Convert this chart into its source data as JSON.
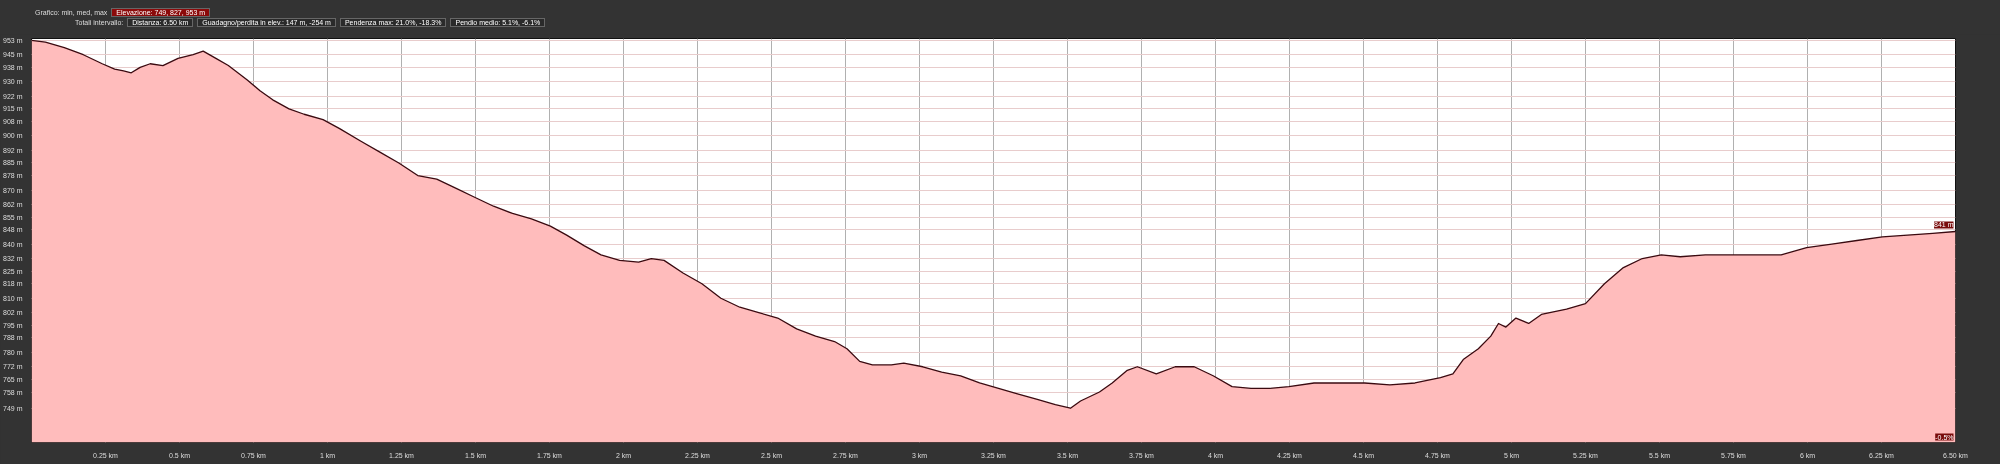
{
  "chart_data": {
    "type": "area",
    "title": "Grafico: min, med, max",
    "subtitle": "Totali intervallo:",
    "annotations": [
      "Elevazione: 749, 827, 953 m",
      "Distanza: 6.50 km",
      "Guadagno/perdita in elev.: 147 m, -254 m",
      "Pendenza max: 21.0%, -18.3%",
      "Pendio medio: 5.1%, -6.1%",
      "841 m",
      "-0.5%"
    ],
    "x": [
      0,
      0.047,
      0.111,
      0.175,
      0.239,
      0.281,
      0.311,
      0.337,
      0.367,
      0.401,
      0.444,
      0.495,
      0.546,
      0.58,
      0.623,
      0.665,
      0.729,
      0.772,
      0.815,
      0.87,
      0.921,
      0.985,
      1.041,
      1.113,
      1.177,
      1.241,
      1.305,
      1.369,
      1.433,
      1.497,
      1.561,
      1.625,
      1.689,
      1.753,
      1.808,
      1.868,
      1.924,
      1.987,
      2.051,
      2.094,
      2.137,
      2.201,
      2.265,
      2.329,
      2.393,
      2.457,
      2.521,
      2.585,
      2.649,
      2.713,
      2.755,
      2.798,
      2.841,
      2.905,
      2.947,
      3.011,
      3.075,
      3.139,
      3.203,
      3.267,
      3.331,
      3.395,
      3.459,
      3.51,
      3.544,
      3.608,
      3.651,
      3.702,
      3.736,
      3.8,
      3.864,
      3.928,
      3.992,
      4.056,
      4.12,
      4.184,
      4.248,
      4.333,
      4.419,
      4.504,
      4.589,
      4.674,
      4.76,
      4.802,
      4.837,
      4.888,
      4.93,
      4.956,
      4.981,
      5.015,
      5.058,
      5.101,
      5.186,
      5.25,
      5.314,
      5.378,
      5.442,
      5.506,
      5.57,
      5.655,
      5.741,
      5.826,
      5.911,
      5.997,
      6.082,
      6.167,
      6.253,
      6.338,
      6.423,
      6.5
    ],
    "series": [
      {
        "color": "#3a0a10",
        "values": [
          953,
          952,
          949,
          945,
          940,
          937,
          936,
          935,
          938,
          940,
          939,
          943,
          945,
          947,
          943,
          939,
          931,
          925,
          920,
          915,
          912,
          909,
          904,
          897,
          891,
          885,
          878,
          876,
          871,
          866,
          861,
          857,
          854,
          850,
          845,
          839,
          834,
          831,
          830,
          832,
          831,
          824,
          818,
          810,
          805,
          802,
          799,
          793,
          789,
          786,
          782,
          775,
          773,
          773,
          774,
          772,
          769,
          767,
          763,
          760,
          757,
          754,
          751,
          749,
          753,
          758,
          763,
          770,
          772,
          768,
          772,
          772,
          767,
          761,
          760,
          760,
          761,
          763,
          763,
          763,
          762,
          763,
          766,
          768,
          776,
          782,
          789,
          796,
          794,
          799,
          796,
          801,
          804,
          807,
          818,
          827,
          832,
          834,
          833,
          834,
          834,
          834,
          834,
          838,
          840,
          842,
          844,
          845,
          846,
          847
        ]
      }
    ],
    "xlim": [
      0,
      6.5
    ],
    "ylim": [
      730,
      954
    ],
    "xticks": [
      {
        "value": 0.25,
        "label": "0.25 km"
      },
      {
        "value": 0.5,
        "label": "0.5 km"
      },
      {
        "value": 0.75,
        "label": "0.75 km"
      },
      {
        "value": 1,
        "label": "1 km"
      },
      {
        "value": 1.25,
        "label": "1.25 km"
      },
      {
        "value": 1.5,
        "label": "1.5 km"
      },
      {
        "value": 1.75,
        "label": "1.75 km"
      },
      {
        "value": 2,
        "label": "2 km"
      },
      {
        "value": 2.25,
        "label": "2.25 km"
      },
      {
        "value": 2.5,
        "label": "2.5 km"
      },
      {
        "value": 2.75,
        "label": "2.75 km"
      },
      {
        "value": 3,
        "label": "3 km"
      },
      {
        "value": 3.25,
        "label": "3.25 km"
      },
      {
        "value": 3.5,
        "label": "3.5 km"
      },
      {
        "value": 3.75,
        "label": "3.75 km"
      },
      {
        "value": 4,
        "label": "4 km"
      },
      {
        "value": 4.25,
        "label": "4.25 km"
      },
      {
        "value": 4.5,
        "label": "4.5 km"
      },
      {
        "value": 4.75,
        "label": "4.75 km"
      },
      {
        "value": 5,
        "label": "5 km"
      },
      {
        "value": 5.25,
        "label": "5.25 km"
      },
      {
        "value": 5.5,
        "label": "5.5 km"
      },
      {
        "value": 5.75,
        "label": "5.75 km"
      },
      {
        "value": 6,
        "label": "6 km"
      },
      {
        "value": 6.25,
        "label": "6.25 km"
      },
      {
        "value": 6.5,
        "label": "6.50 km"
      }
    ],
    "yticks": [
      {
        "value": 953,
        "label": "953 m"
      },
      {
        "value": 945,
        "label": "945 m"
      },
      {
        "value": 938,
        "label": "938 m"
      },
      {
        "value": 930,
        "label": "930 m"
      },
      {
        "value": 922,
        "label": "922 m"
      },
      {
        "value": 915,
        "label": "915 m"
      },
      {
        "value": 908,
        "label": "908 m"
      },
      {
        "value": 900,
        "label": "900 m"
      },
      {
        "value": 892,
        "label": "892 m"
      },
      {
        "value": 885,
        "label": "885 m"
      },
      {
        "value": 878,
        "label": "878 m"
      },
      {
        "value": 870,
        "label": "870 m"
      },
      {
        "value": 862,
        "label": "862 m"
      },
      {
        "value": 855,
        "label": "855 m"
      },
      {
        "value": 848,
        "label": "848 m"
      },
      {
        "value": 840,
        "label": "840 m"
      },
      {
        "value": 832,
        "label": "832 m"
      },
      {
        "value": 825,
        "label": "825 m"
      },
      {
        "value": 818,
        "label": "818 m"
      },
      {
        "value": 810,
        "label": "810 m"
      },
      {
        "value": 802,
        "label": "802 m"
      },
      {
        "value": 795,
        "label": "795 m"
      },
      {
        "value": 788,
        "label": "788 m"
      },
      {
        "value": 780,
        "label": "780 m"
      },
      {
        "value": 772,
        "label": "772 m"
      },
      {
        "value": 765,
        "label": "765 m"
      },
      {
        "value": 758,
        "label": "758 m"
      },
      {
        "value": 749,
        "label": "749 m"
      }
    ],
    "grid": true
  }
}
